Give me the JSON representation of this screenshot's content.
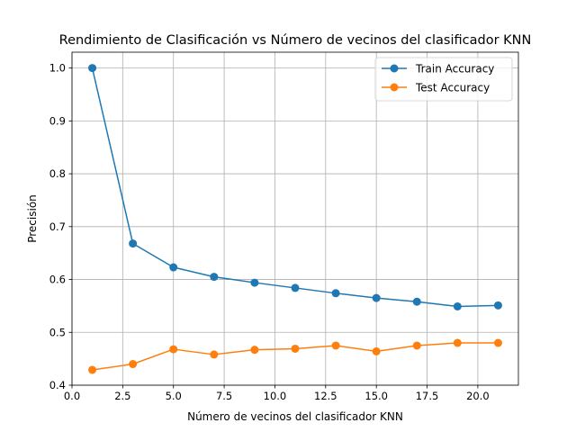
{
  "chart_data": {
    "type": "line",
    "title": "Rendimiento de Clasificación vs Número de vecinos del clasificador KNN",
    "xlabel": "Número de vecinos del clasificador KNN",
    "ylabel": "Precisión",
    "xlim": [
      0.0,
      22.0
    ],
    "ylim": [
      0.4,
      1.03
    ],
    "grid": true,
    "legend_position": "top-right",
    "x": [
      1,
      3,
      5,
      7,
      9,
      11,
      13,
      15,
      17,
      19,
      21
    ],
    "x_ticks": [
      0.0,
      2.5,
      5.0,
      7.5,
      10.0,
      12.5,
      15.0,
      17.5,
      20.0
    ],
    "x_tick_labels": [
      "0.0",
      "2.5",
      "5.0",
      "7.5",
      "10.0",
      "12.5",
      "15.0",
      "17.5",
      "20.0"
    ],
    "y_ticks": [
      0.4,
      0.5,
      0.6,
      0.7,
      0.8,
      0.9,
      1.0
    ],
    "y_tick_labels": [
      "0.4",
      "0.5",
      "0.6",
      "0.7",
      "0.8",
      "0.9",
      "1.0"
    ],
    "series": [
      {
        "name": "Train Accuracy",
        "color": "#1f77b4",
        "marker": "circle",
        "values": [
          1.0,
          0.668,
          0.623,
          0.605,
          0.594,
          0.584,
          0.574,
          0.565,
          0.558,
          0.549,
          0.551
        ]
      },
      {
        "name": "Test Accuracy",
        "color": "#ff7f0e",
        "marker": "circle",
        "values": [
          0.429,
          0.44,
          0.468,
          0.458,
          0.467,
          0.469,
          0.475,
          0.464,
          0.475,
          0.48,
          0.48
        ]
      }
    ]
  }
}
